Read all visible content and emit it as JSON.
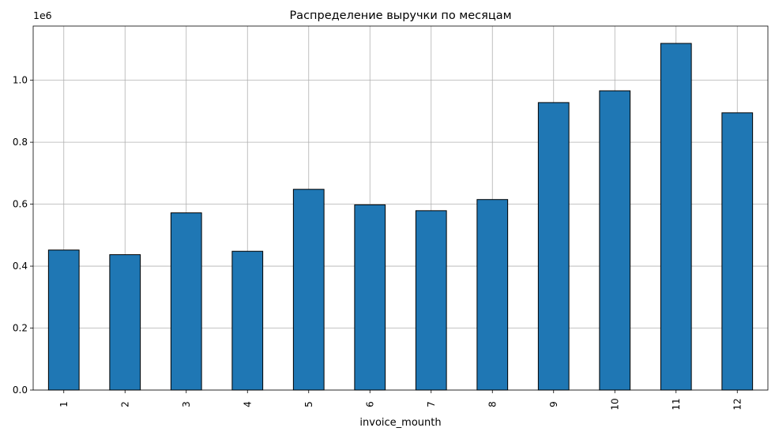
{
  "chart_data": {
    "type": "bar",
    "title": "Распределение выручки по месяцам",
    "xlabel": "invoice_mounth",
    "ylabel": "",
    "y_offset_label": "1e6",
    "y_scale": 1000000,
    "categories": [
      "1",
      "2",
      "3",
      "4",
      "5",
      "6",
      "7",
      "8",
      "9",
      "10",
      "11",
      "12"
    ],
    "values": [
      452000,
      437000,
      572000,
      448000,
      648000,
      598000,
      579000,
      615000,
      928000,
      966000,
      1119000,
      895000
    ],
    "ylim": [
      0,
      1175000
    ],
    "yticks": [
      0,
      200000,
      400000,
      600000,
      800000,
      1000000
    ],
    "ytick_labels": [
      "0.0",
      "0.2",
      "0.4",
      "0.6",
      "0.8",
      "1.0"
    ],
    "grid": true,
    "legend": "none",
    "colors": {
      "bar": "#1f77b4",
      "edge": "#000000",
      "grid": "#b0b0b0"
    }
  }
}
